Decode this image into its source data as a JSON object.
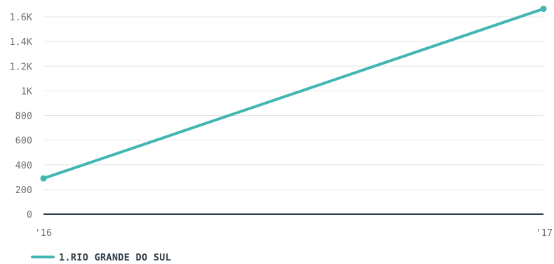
{
  "chart_data": {
    "type": "line",
    "title": "",
    "xlabel": "",
    "ylabel": "",
    "categories": [
      "'16",
      "'17"
    ],
    "series": [
      {
        "name": "1.RIO GRANDE DO SUL",
        "values": [
          290,
          1665
        ],
        "color": "#41b6b3"
      }
    ],
    "ylim": [
      0,
      1600
    ],
    "yticks": [
      0,
      200,
      400,
      600,
      800,
      1000,
      1200,
      1400,
      1600
    ],
    "ytick_labels": [
      "0",
      "200",
      "400",
      "600",
      "800",
      "1K",
      "1.2K",
      "1.4K",
      "1.6K"
    ],
    "grid": true,
    "legend_position": "bottom-left",
    "colors": {
      "grid": "#e6e6e6",
      "baseline": "#2f3b46",
      "tick_text": "#6f6f6f"
    }
  }
}
